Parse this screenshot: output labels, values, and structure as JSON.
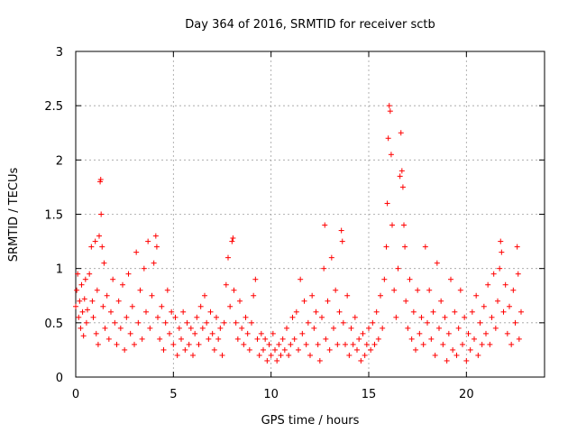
{
  "chart_data": {
    "type": "scatter",
    "title": "Day 364 of 2016, SRMTID for receiver sctb",
    "xlabel": "GPS time / hours",
    "ylabel": "SRMTID / TECUs",
    "xlim": [
      0,
      24
    ],
    "ylim": [
      0,
      3
    ],
    "xticks": [
      0,
      5,
      10,
      15,
      20
    ],
    "xtick_labels": [
      "0",
      "5",
      "10",
      "15",
      "20"
    ],
    "yticks": [
      0,
      0.5,
      1,
      1.5,
      2,
      2.5,
      3
    ],
    "ytick_labels": [
      "0",
      "0.5",
      "1",
      "1.5",
      "2",
      "2.5",
      "3"
    ],
    "grid": true,
    "marker": "+",
    "series_color": "#ff0000",
    "series": [
      {
        "name": "SRMTID",
        "points": [
          [
            0.0,
            0.65
          ],
          [
            0.05,
            0.8
          ],
          [
            0.1,
            0.95
          ],
          [
            0.15,
            0.55
          ],
          [
            0.2,
            0.7
          ],
          [
            0.25,
            0.45
          ],
          [
            0.3,
            0.85
          ],
          [
            0.35,
            0.6
          ],
          [
            0.4,
            0.38
          ],
          [
            0.45,
            0.72
          ],
          [
            0.5,
            0.9
          ],
          [
            0.55,
            0.5
          ],
          [
            0.6,
            0.62
          ],
          [
            0.7,
            0.95
          ],
          [
            0.8,
            1.2
          ],
          [
            0.85,
            0.7
          ],
          [
            0.9,
            0.55
          ],
          [
            1.0,
            1.25
          ],
          [
            1.05,
            0.4
          ],
          [
            1.1,
            0.8
          ],
          [
            1.15,
            0.3
          ],
          [
            1.2,
            1.3
          ],
          [
            1.25,
            1.8
          ],
          [
            1.28,
            1.82
          ],
          [
            1.3,
            1.5
          ],
          [
            1.35,
            1.2
          ],
          [
            1.4,
            0.65
          ],
          [
            1.45,
            1.05
          ],
          [
            1.5,
            0.45
          ],
          [
            1.6,
            0.75
          ],
          [
            1.7,
            0.35
          ],
          [
            1.8,
            0.6
          ],
          [
            1.9,
            0.9
          ],
          [
            2.0,
            0.5
          ],
          [
            2.1,
            0.3
          ],
          [
            2.2,
            0.7
          ],
          [
            2.3,
            0.45
          ],
          [
            2.4,
            0.85
          ],
          [
            2.5,
            0.25
          ],
          [
            2.6,
            0.55
          ],
          [
            2.7,
            0.95
          ],
          [
            2.8,
            0.4
          ],
          [
            2.9,
            0.65
          ],
          [
            3.0,
            0.3
          ],
          [
            3.1,
            1.15
          ],
          [
            3.2,
            0.5
          ],
          [
            3.3,
            0.8
          ],
          [
            3.4,
            0.35
          ],
          [
            3.5,
            1.0
          ],
          [
            3.6,
            0.6
          ],
          [
            3.7,
            1.25
          ],
          [
            3.8,
            0.45
          ],
          [
            3.9,
            0.75
          ],
          [
            4.0,
            1.05
          ],
          [
            4.1,
            1.3
          ],
          [
            4.15,
            1.2
          ],
          [
            4.2,
            0.55
          ],
          [
            4.3,
            0.35
          ],
          [
            4.4,
            0.65
          ],
          [
            4.5,
            0.25
          ],
          [
            4.6,
            0.5
          ],
          [
            4.7,
            0.8
          ],
          [
            4.8,
            0.4
          ],
          [
            4.9,
            0.6
          ],
          [
            5.0,
            0.3
          ],
          [
            5.1,
            0.55
          ],
          [
            5.2,
            0.2
          ],
          [
            5.3,
            0.45
          ],
          [
            5.4,
            0.35
          ],
          [
            5.5,
            0.6
          ],
          [
            5.6,
            0.25
          ],
          [
            5.7,
            0.5
          ],
          [
            5.8,
            0.3
          ],
          [
            5.9,
            0.45
          ],
          [
            6.0,
            0.2
          ],
          [
            6.1,
            0.4
          ],
          [
            6.2,
            0.55
          ],
          [
            6.3,
            0.3
          ],
          [
            6.4,
            0.65
          ],
          [
            6.5,
            0.45
          ],
          [
            6.6,
            0.75
          ],
          [
            6.7,
            0.5
          ],
          [
            6.8,
            0.35
          ],
          [
            6.9,
            0.6
          ],
          [
            7.0,
            0.4
          ],
          [
            7.1,
            0.25
          ],
          [
            7.2,
            0.55
          ],
          [
            7.3,
            0.35
          ],
          [
            7.4,
            0.45
          ],
          [
            7.5,
            0.2
          ],
          [
            7.6,
            0.5
          ],
          [
            7.7,
            0.85
          ],
          [
            7.8,
            1.1
          ],
          [
            7.9,
            0.65
          ],
          [
            8.0,
            1.25
          ],
          [
            8.05,
            1.28
          ],
          [
            8.1,
            0.8
          ],
          [
            8.2,
            0.5
          ],
          [
            8.3,
            0.35
          ],
          [
            8.4,
            0.7
          ],
          [
            8.5,
            0.45
          ],
          [
            8.6,
            0.3
          ],
          [
            8.7,
            0.55
          ],
          [
            8.8,
            0.4
          ],
          [
            8.9,
            0.25
          ],
          [
            9.0,
            0.5
          ],
          [
            9.1,
            0.75
          ],
          [
            9.2,
            0.9
          ],
          [
            9.3,
            0.35
          ],
          [
            9.4,
            0.2
          ],
          [
            9.5,
            0.4
          ],
          [
            9.6,
            0.25
          ],
          [
            9.7,
            0.35
          ],
          [
            9.8,
            0.15
          ],
          [
            9.9,
            0.3
          ],
          [
            10.0,
            0.2
          ],
          [
            10.1,
            0.4
          ],
          [
            10.2,
            0.25
          ],
          [
            10.3,
            0.15
          ],
          [
            10.4,
            0.3
          ],
          [
            10.5,
            0.2
          ],
          [
            10.6,
            0.35
          ],
          [
            10.7,
            0.25
          ],
          [
            10.8,
            0.45
          ],
          [
            10.9,
            0.2
          ],
          [
            11.0,
            0.3
          ],
          [
            11.1,
            0.55
          ],
          [
            11.2,
            0.35
          ],
          [
            11.3,
            0.6
          ],
          [
            11.4,
            0.25
          ],
          [
            11.5,
            0.9
          ],
          [
            11.6,
            0.4
          ],
          [
            11.7,
            0.7
          ],
          [
            11.8,
            0.3
          ],
          [
            11.9,
            0.5
          ],
          [
            12.0,
            0.2
          ],
          [
            12.1,
            0.75
          ],
          [
            12.2,
            0.45
          ],
          [
            12.3,
            0.6
          ],
          [
            12.4,
            0.3
          ],
          [
            12.5,
            0.15
          ],
          [
            12.6,
            0.55
          ],
          [
            12.7,
            1.0
          ],
          [
            12.75,
            1.4
          ],
          [
            12.8,
            0.35
          ],
          [
            12.9,
            0.7
          ],
          [
            13.0,
            0.25
          ],
          [
            13.1,
            1.1
          ],
          [
            13.2,
            0.45
          ],
          [
            13.3,
            0.8
          ],
          [
            13.4,
            0.3
          ],
          [
            13.5,
            0.6
          ],
          [
            13.6,
            1.35
          ],
          [
            13.65,
            1.25
          ],
          [
            13.7,
            0.5
          ],
          [
            13.8,
            0.3
          ],
          [
            13.9,
            0.75
          ],
          [
            14.0,
            0.2
          ],
          [
            14.1,
            0.45
          ],
          [
            14.2,
            0.3
          ],
          [
            14.3,
            0.55
          ],
          [
            14.4,
            0.25
          ],
          [
            14.5,
            0.35
          ],
          [
            14.6,
            0.15
          ],
          [
            14.7,
            0.4
          ],
          [
            14.8,
            0.2
          ],
          [
            14.9,
            0.3
          ],
          [
            15.0,
            0.45
          ],
          [
            15.1,
            0.25
          ],
          [
            15.2,
            0.5
          ],
          [
            15.3,
            0.3
          ],
          [
            15.4,
            0.6
          ],
          [
            15.5,
            0.35
          ],
          [
            15.6,
            0.75
          ],
          [
            15.7,
            0.45
          ],
          [
            15.8,
            0.9
          ],
          [
            15.9,
            1.2
          ],
          [
            15.95,
            1.6
          ],
          [
            16.0,
            2.2
          ],
          [
            16.05,
            2.5
          ],
          [
            16.1,
            2.45
          ],
          [
            16.15,
            2.05
          ],
          [
            16.2,
            1.4
          ],
          [
            16.3,
            0.8
          ],
          [
            16.4,
            0.55
          ],
          [
            16.5,
            1.0
          ],
          [
            16.6,
            1.85
          ],
          [
            16.65,
            2.25
          ],
          [
            16.7,
            1.9
          ],
          [
            16.75,
            1.75
          ],
          [
            16.8,
            1.4
          ],
          [
            16.85,
            1.2
          ],
          [
            16.9,
            0.7
          ],
          [
            17.0,
            0.45
          ],
          [
            17.1,
            0.9
          ],
          [
            17.2,
            0.35
          ],
          [
            17.3,
            0.6
          ],
          [
            17.4,
            0.25
          ],
          [
            17.5,
            0.8
          ],
          [
            17.6,
            0.4
          ],
          [
            17.7,
            0.55
          ],
          [
            17.8,
            0.3
          ],
          [
            17.9,
            1.2
          ],
          [
            18.0,
            0.5
          ],
          [
            18.1,
            0.8
          ],
          [
            18.2,
            0.35
          ],
          [
            18.3,
            0.6
          ],
          [
            18.4,
            0.2
          ],
          [
            18.5,
            1.05
          ],
          [
            18.6,
            0.45
          ],
          [
            18.7,
            0.7
          ],
          [
            18.8,
            0.3
          ],
          [
            18.9,
            0.55
          ],
          [
            19.0,
            0.15
          ],
          [
            19.1,
            0.4
          ],
          [
            19.2,
            0.9
          ],
          [
            19.3,
            0.25
          ],
          [
            19.4,
            0.6
          ],
          [
            19.5,
            0.2
          ],
          [
            19.6,
            0.45
          ],
          [
            19.7,
            0.8
          ],
          [
            19.8,
            0.3
          ],
          [
            19.9,
            0.55
          ],
          [
            20.0,
            0.15
          ],
          [
            20.1,
            0.4
          ],
          [
            20.2,
            0.25
          ],
          [
            20.3,
            0.6
          ],
          [
            20.4,
            0.35
          ],
          [
            20.5,
            0.75
          ],
          [
            20.6,
            0.2
          ],
          [
            20.7,
            0.5
          ],
          [
            20.8,
            0.3
          ],
          [
            20.9,
            0.65
          ],
          [
            21.0,
            0.4
          ],
          [
            21.1,
            0.85
          ],
          [
            21.2,
            0.3
          ],
          [
            21.3,
            0.55
          ],
          [
            21.4,
            0.95
          ],
          [
            21.5,
            0.45
          ],
          [
            21.6,
            0.7
          ],
          [
            21.7,
            1.0
          ],
          [
            21.75,
            1.25
          ],
          [
            21.8,
            1.15
          ],
          [
            21.9,
            0.6
          ],
          [
            22.0,
            0.85
          ],
          [
            22.1,
            0.4
          ],
          [
            22.2,
            0.65
          ],
          [
            22.3,
            0.3
          ],
          [
            22.4,
            0.8
          ],
          [
            22.5,
            0.5
          ],
          [
            22.6,
            1.2
          ],
          [
            22.65,
            0.95
          ],
          [
            22.7,
            0.35
          ],
          [
            22.8,
            0.6
          ]
        ]
      }
    ]
  }
}
